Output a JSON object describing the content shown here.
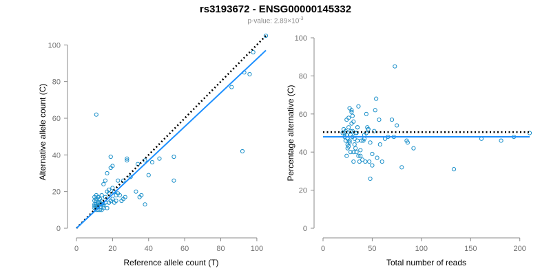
{
  "header": {
    "title": "rs3193672 - ENSG00000145332",
    "pvalue_prefix": "p-value: 2.89×10",
    "pvalue_exponent": "-3"
  },
  "colors": {
    "points": "#1a8fc9",
    "fit": "#1e90ff",
    "reference": "#000000",
    "axis": "#888888"
  },
  "chart_data": [
    {
      "type": "scatter",
      "title": "",
      "xlabel": "Reference allele count (T)",
      "ylabel": "Alternative allele count (C)",
      "xlim": [
        0,
        105
      ],
      "ylim": [
        0,
        105
      ],
      "xticks": [
        0,
        20,
        40,
        60,
        80,
        100
      ],
      "yticks": [
        0,
        20,
        40,
        60,
        80,
        100
      ],
      "x": [
        105,
        98,
        96,
        93,
        86,
        92,
        54,
        54,
        46,
        42,
        40,
        38,
        38,
        36,
        35,
        34,
        33,
        30,
        28,
        28,
        27,
        26,
        26,
        25,
        24,
        23,
        23,
        22,
        22,
        21,
        21,
        20,
        20,
        19,
        19,
        18,
        18,
        18,
        17,
        17,
        16,
        16,
        15,
        15,
        15,
        14,
        14,
        14,
        13,
        13,
        13,
        12,
        12,
        12,
        12,
        11,
        11,
        11,
        11,
        11,
        11,
        10,
        10,
        10,
        10,
        10,
        11,
        13,
        15,
        14,
        12,
        16,
        17,
        20,
        18,
        19,
        11
      ],
      "y": [
        105,
        96,
        84,
        85,
        77,
        42,
        39,
        26,
        38,
        36,
        29,
        37,
        13,
        18,
        17,
        35,
        20,
        28,
        38,
        37,
        17,
        26,
        16,
        15,
        18,
        26,
        19,
        18,
        15,
        20,
        14,
        34,
        16,
        15,
        39,
        19,
        21,
        14,
        20,
        11,
        17,
        14,
        24,
        12,
        11,
        18,
        15,
        10,
        16,
        13,
        10,
        17,
        14,
        12,
        10,
        18,
        16,
        15,
        13,
        12,
        11,
        17,
        15,
        13,
        12,
        11,
        62,
        14,
        13,
        13,
        17,
        26,
        30,
        22,
        14,
        33,
        10
      ],
      "lines": [
        {
          "name": "",
          "style": "dotted",
          "color": "#000000",
          "x": [
            0,
            105
          ],
          "y": [
            0,
            105
          ]
        },
        {
          "name": "",
          "style": "solid",
          "color": "#1e90ff",
          "x": [
            0,
            105
          ],
          "y": [
            0,
            97
          ]
        }
      ]
    },
    {
      "type": "scatter",
      "title": "",
      "xlabel": "Total number of reads",
      "ylabel": "Percentage alternative (C)",
      "xlim": [
        0,
        210
      ],
      "ylim": [
        0,
        100
      ],
      "xticks": [
        0,
        50,
        100,
        150,
        200
      ],
      "yticks": [
        0,
        20,
        40,
        60,
        80,
        100
      ],
      "x": [
        210,
        194,
        181,
        161,
        133,
        92,
        86,
        80,
        73,
        72,
        63,
        57,
        54,
        53,
        50,
        48,
        47,
        46,
        45,
        44,
        43,
        42,
        41,
        40,
        39,
        38,
        37,
        36,
        35,
        35,
        34,
        34,
        33,
        32,
        31,
        31,
        30,
        30,
        29,
        29,
        28,
        28,
        27,
        27,
        26,
        26,
        26,
        25,
        25,
        24,
        24,
        24,
        23,
        23,
        22,
        22,
        21,
        20,
        28,
        30,
        32,
        35,
        38,
        44,
        48,
        52,
        55,
        60,
        70,
        75,
        85,
        25,
        27,
        29,
        31,
        33,
        36,
        42,
        46,
        50,
        58,
        66
      ],
      "y": [
        50,
        48,
        46,
        47,
        31,
        42,
        45,
        32,
        85,
        48,
        47,
        57,
        68,
        62,
        33,
        26,
        35,
        52,
        53,
        60,
        35,
        47,
        46,
        36,
        46,
        38,
        35,
        64,
        53,
        46,
        40,
        50,
        42,
        44,
        35,
        56,
        59,
        48,
        62,
        55,
        51,
        40,
        63,
        45,
        58,
        53,
        43,
        47,
        42,
        49,
        57,
        38,
        46,
        51,
        50,
        48,
        52,
        50,
        49,
        51,
        47,
        53,
        41,
        50,
        45,
        51,
        37,
        35,
        57,
        54,
        46,
        44,
        46,
        61,
        40,
        50,
        38,
        49,
        52,
        39,
        44,
        48
      ],
      "lines": [
        {
          "name": "",
          "style": "dotted",
          "color": "#000000",
          "x": [
            0,
            210
          ],
          "y": [
            50.5,
            50.5
          ]
        },
        {
          "name": "",
          "style": "solid",
          "color": "#1e90ff",
          "x": [
            0,
            210
          ],
          "y": [
            48,
            48
          ]
        }
      ]
    }
  ]
}
